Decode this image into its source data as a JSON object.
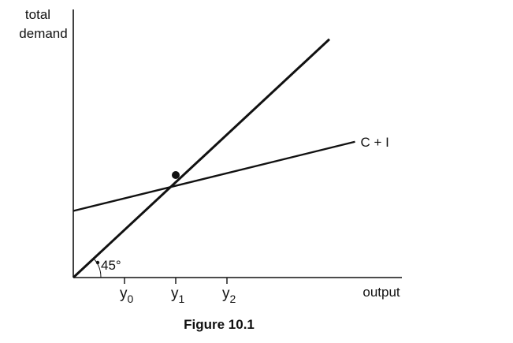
{
  "chart_data": {
    "type": "line",
    "title": "Figure 10.1",
    "ylabel_lines": [
      "total",
      "demand"
    ],
    "xlabel": "output",
    "x_ticks": [
      {
        "base": "y",
        "sub": "0",
        "x": 2
      },
      {
        "base": "y",
        "sub": "1",
        "x": 4
      },
      {
        "base": "y",
        "sub": "2",
        "x": 6
      }
    ],
    "series": [
      {
        "x": [
          0,
          10
        ],
        "y": [
          0,
          9.3
        ]
      },
      {
        "name": "C + I",
        "x": [
          0,
          11
        ],
        "y": [
          2.6,
          5.3
        ]
      }
    ],
    "equilibrium": {
      "x": 4,
      "y": 4
    },
    "angle_annotation": "45°",
    "xlim": [
      0,
      13
    ],
    "ylim": [
      0,
      10
    ],
    "grid": false,
    "colors": {
      "line": "#111111",
      "axis": "#111111"
    }
  }
}
